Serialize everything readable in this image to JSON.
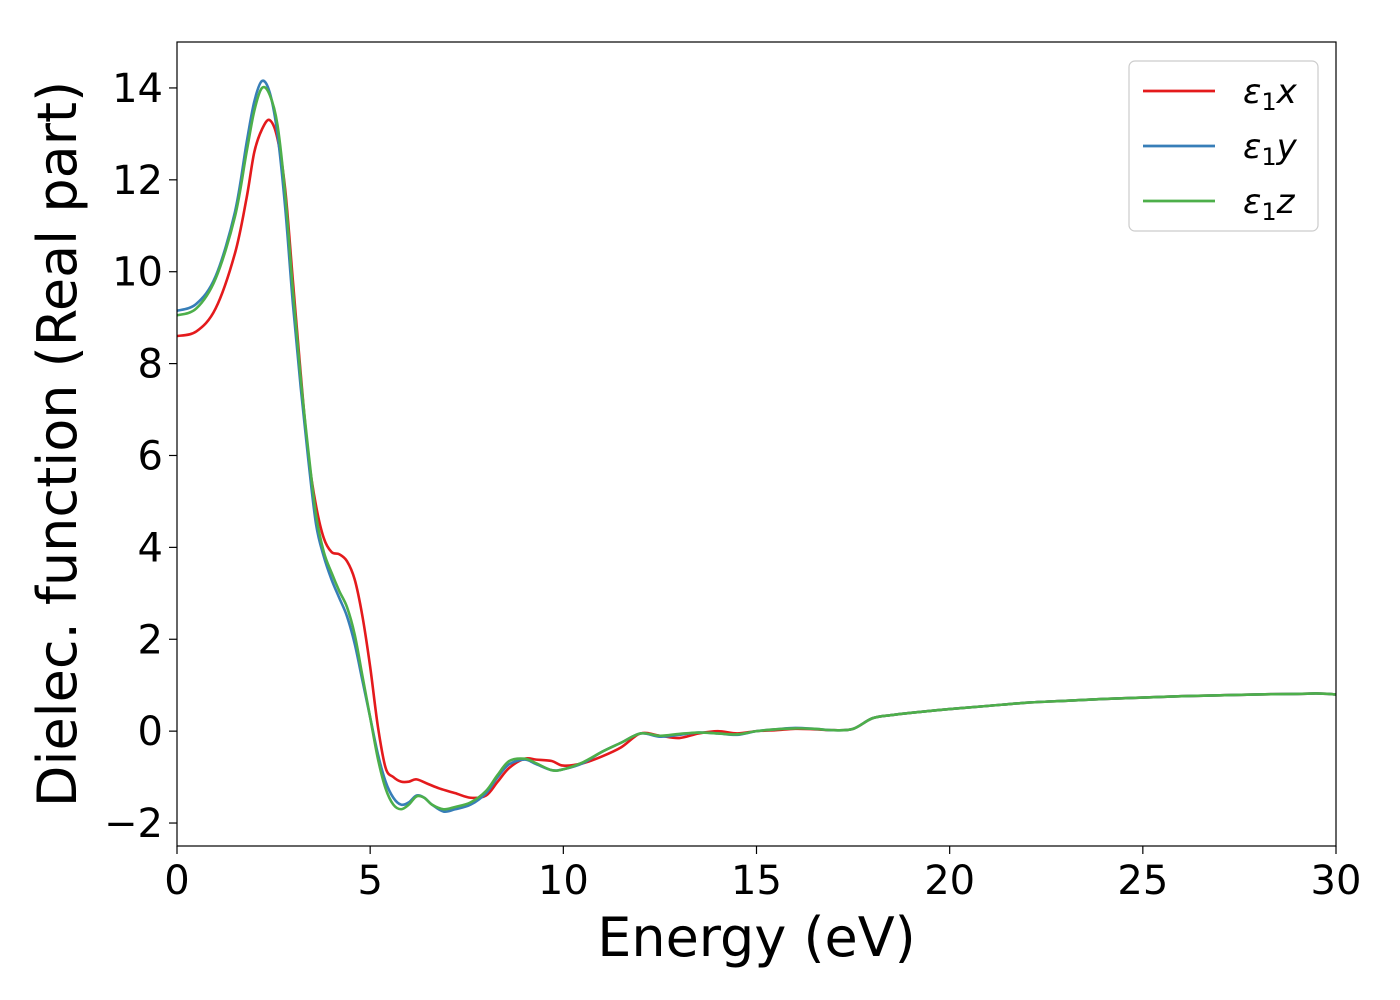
{
  "chart_data": {
    "type": "line",
    "xlabel": "Energy (eV)",
    "ylabel": "Dielec. function (Real part)",
    "xlim": [
      0,
      30
    ],
    "ylim": [
      -2.5,
      15
    ],
    "xticks": [
      0,
      5,
      10,
      15,
      20,
      25,
      30
    ],
    "yticks": [
      -2,
      0,
      2,
      4,
      6,
      8,
      10,
      12,
      14
    ],
    "grid": false,
    "legend": "top-right",
    "series": [
      {
        "name": "ε1x",
        "name_base": "ε",
        "name_sub": "1",
        "name_tail": "x",
        "color": "#e41a1c",
        "points": [
          [
            0,
            8.6
          ],
          [
            0.5,
            8.7
          ],
          [
            1.0,
            9.2
          ],
          [
            1.5,
            10.4
          ],
          [
            1.8,
            11.6
          ],
          [
            2.0,
            12.6
          ],
          [
            2.2,
            13.1
          ],
          [
            2.4,
            13.3
          ],
          [
            2.6,
            12.9
          ],
          [
            2.8,
            11.8
          ],
          [
            3.0,
            9.8
          ],
          [
            3.2,
            7.8
          ],
          [
            3.4,
            6.0
          ],
          [
            3.6,
            4.9
          ],
          [
            3.8,
            4.2
          ],
          [
            4.0,
            3.9
          ],
          [
            4.2,
            3.85
          ],
          [
            4.4,
            3.7
          ],
          [
            4.6,
            3.3
          ],
          [
            4.8,
            2.5
          ],
          [
            5.0,
            1.4
          ],
          [
            5.2,
            0.1
          ],
          [
            5.4,
            -0.8
          ],
          [
            5.6,
            -1.0
          ],
          [
            5.8,
            -1.1
          ],
          [
            6.0,
            -1.1
          ],
          [
            6.2,
            -1.05
          ],
          [
            6.5,
            -1.15
          ],
          [
            6.8,
            -1.25
          ],
          [
            7.2,
            -1.35
          ],
          [
            7.6,
            -1.45
          ],
          [
            8.0,
            -1.4
          ],
          [
            8.3,
            -1.1
          ],
          [
            8.6,
            -0.8
          ],
          [
            9.0,
            -0.6
          ],
          [
            9.3,
            -0.62
          ],
          [
            9.7,
            -0.65
          ],
          [
            10.0,
            -0.75
          ],
          [
            10.5,
            -0.7
          ],
          [
            11.0,
            -0.55
          ],
          [
            11.5,
            -0.35
          ],
          [
            12.0,
            -0.05
          ],
          [
            12.5,
            -0.1
          ],
          [
            13.0,
            -0.15
          ],
          [
            13.5,
            -0.05
          ],
          [
            14.0,
            0.0
          ],
          [
            14.5,
            -0.05
          ],
          [
            15.0,
            0.0
          ],
          [
            15.5,
            0.02
          ],
          [
            16.0,
            0.05
          ],
          [
            16.5,
            0.04
          ],
          [
            17.0,
            0.02
          ],
          [
            17.5,
            0.05
          ],
          [
            18.0,
            0.28
          ],
          [
            18.5,
            0.35
          ],
          [
            19.0,
            0.4
          ],
          [
            20.0,
            0.48
          ],
          [
            21.0,
            0.55
          ],
          [
            22.0,
            0.62
          ],
          [
            23.0,
            0.66
          ],
          [
            24.0,
            0.7
          ],
          [
            25.0,
            0.73
          ],
          [
            26.0,
            0.76
          ],
          [
            27.0,
            0.78
          ],
          [
            28.0,
            0.8
          ],
          [
            29.0,
            0.81
          ],
          [
            29.5,
            0.82
          ],
          [
            30.0,
            0.8
          ]
        ]
      },
      {
        "name": "ε1y",
        "name_base": "ε",
        "name_sub": "1",
        "name_tail": "y",
        "color": "#377eb8",
        "points": [
          [
            0,
            9.15
          ],
          [
            0.5,
            9.3
          ],
          [
            1.0,
            9.9
          ],
          [
            1.5,
            11.3
          ],
          [
            1.8,
            12.8
          ],
          [
            2.0,
            13.7
          ],
          [
            2.2,
            14.15
          ],
          [
            2.4,
            13.9
          ],
          [
            2.6,
            13.0
          ],
          [
            2.8,
            11.4
          ],
          [
            3.0,
            9.3
          ],
          [
            3.2,
            7.5
          ],
          [
            3.4,
            5.9
          ],
          [
            3.6,
            4.5
          ],
          [
            3.8,
            3.8
          ],
          [
            4.0,
            3.3
          ],
          [
            4.2,
            2.9
          ],
          [
            4.4,
            2.5
          ],
          [
            4.6,
            1.9
          ],
          [
            4.8,
            1.1
          ],
          [
            5.0,
            0.3
          ],
          [
            5.2,
            -0.5
          ],
          [
            5.4,
            -1.1
          ],
          [
            5.6,
            -1.45
          ],
          [
            5.8,
            -1.6
          ],
          [
            6.0,
            -1.55
          ],
          [
            6.2,
            -1.4
          ],
          [
            6.4,
            -1.45
          ],
          [
            6.6,
            -1.6
          ],
          [
            6.9,
            -1.75
          ],
          [
            7.2,
            -1.7
          ],
          [
            7.6,
            -1.6
          ],
          [
            8.0,
            -1.35
          ],
          [
            8.3,
            -1.0
          ],
          [
            8.6,
            -0.72
          ],
          [
            9.0,
            -0.62
          ],
          [
            9.3,
            -0.72
          ],
          [
            9.7,
            -0.85
          ],
          [
            10.0,
            -0.83
          ],
          [
            10.5,
            -0.7
          ],
          [
            11.0,
            -0.45
          ],
          [
            11.5,
            -0.25
          ],
          [
            12.0,
            -0.05
          ],
          [
            12.5,
            -0.12
          ],
          [
            13.0,
            -0.08
          ],
          [
            13.5,
            -0.03
          ],
          [
            14.0,
            -0.05
          ],
          [
            14.5,
            -0.08
          ],
          [
            15.0,
            0.0
          ],
          [
            15.5,
            0.04
          ],
          [
            16.0,
            0.07
          ],
          [
            16.5,
            0.05
          ],
          [
            17.0,
            0.02
          ],
          [
            17.5,
            0.05
          ],
          [
            18.0,
            0.28
          ],
          [
            18.5,
            0.35
          ],
          [
            19.0,
            0.4
          ],
          [
            20.0,
            0.48
          ],
          [
            21.0,
            0.55
          ],
          [
            22.0,
            0.62
          ],
          [
            23.0,
            0.66
          ],
          [
            24.0,
            0.7
          ],
          [
            25.0,
            0.73
          ],
          [
            26.0,
            0.76
          ],
          [
            27.0,
            0.78
          ],
          [
            28.0,
            0.8
          ],
          [
            29.0,
            0.81
          ],
          [
            29.5,
            0.82
          ],
          [
            30.0,
            0.8
          ]
        ]
      },
      {
        "name": "ε1z",
        "name_base": "ε",
        "name_sub": "1",
        "name_tail": "z",
        "color": "#4daf4a",
        "points": [
          [
            0,
            9.05
          ],
          [
            0.5,
            9.2
          ],
          [
            1.0,
            9.85
          ],
          [
            1.5,
            11.2
          ],
          [
            1.8,
            12.6
          ],
          [
            2.0,
            13.5
          ],
          [
            2.2,
            14.0
          ],
          [
            2.4,
            13.85
          ],
          [
            2.6,
            13.2
          ],
          [
            2.8,
            11.7
          ],
          [
            3.0,
            9.6
          ],
          [
            3.2,
            7.7
          ],
          [
            3.4,
            6.1
          ],
          [
            3.6,
            4.7
          ],
          [
            3.8,
            3.9
          ],
          [
            4.0,
            3.45
          ],
          [
            4.2,
            3.05
          ],
          [
            4.4,
            2.7
          ],
          [
            4.6,
            2.1
          ],
          [
            4.8,
            1.2
          ],
          [
            5.0,
            0.3
          ],
          [
            5.2,
            -0.6
          ],
          [
            5.4,
            -1.25
          ],
          [
            5.6,
            -1.6
          ],
          [
            5.8,
            -1.7
          ],
          [
            6.0,
            -1.6
          ],
          [
            6.2,
            -1.42
          ],
          [
            6.4,
            -1.45
          ],
          [
            6.6,
            -1.6
          ],
          [
            6.9,
            -1.7
          ],
          [
            7.2,
            -1.65
          ],
          [
            7.6,
            -1.55
          ],
          [
            8.0,
            -1.3
          ],
          [
            8.3,
            -0.95
          ],
          [
            8.6,
            -0.65
          ],
          [
            9.0,
            -0.6
          ],
          [
            9.3,
            -0.7
          ],
          [
            9.7,
            -0.85
          ],
          [
            10.0,
            -0.83
          ],
          [
            10.5,
            -0.68
          ],
          [
            11.0,
            -0.45
          ],
          [
            11.5,
            -0.25
          ],
          [
            12.0,
            -0.05
          ],
          [
            12.5,
            -0.1
          ],
          [
            13.0,
            -0.06
          ],
          [
            13.5,
            -0.03
          ],
          [
            14.0,
            -0.05
          ],
          [
            14.5,
            -0.07
          ],
          [
            15.0,
            0.0
          ],
          [
            15.5,
            0.04
          ],
          [
            16.0,
            0.06
          ],
          [
            16.5,
            0.05
          ],
          [
            17.0,
            0.02
          ],
          [
            17.5,
            0.05
          ],
          [
            18.0,
            0.28
          ],
          [
            18.5,
            0.35
          ],
          [
            19.0,
            0.4
          ],
          [
            20.0,
            0.48
          ],
          [
            21.0,
            0.55
          ],
          [
            22.0,
            0.62
          ],
          [
            23.0,
            0.66
          ],
          [
            24.0,
            0.7
          ],
          [
            25.0,
            0.73
          ],
          [
            26.0,
            0.76
          ],
          [
            27.0,
            0.78
          ],
          [
            28.0,
            0.8
          ],
          [
            29.0,
            0.81
          ],
          [
            29.5,
            0.82
          ],
          [
            30.0,
            0.8
          ]
        ]
      }
    ]
  }
}
